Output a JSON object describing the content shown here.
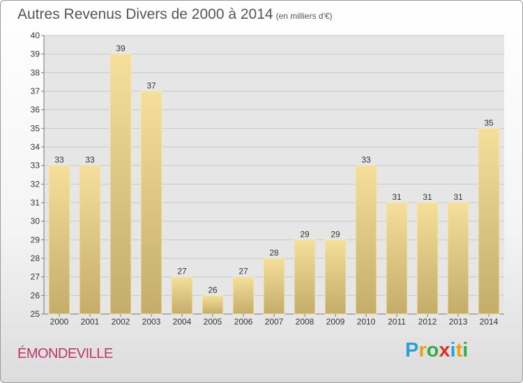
{
  "chart_data": {
    "type": "bar",
    "title": "Autres Revenus Divers de 2000 à 2014",
    "subtitle": "(en milliers d'€)",
    "categories": [
      "2000",
      "2001",
      "2002",
      "2003",
      "2004",
      "2005",
      "2006",
      "2007",
      "2008",
      "2009",
      "2010",
      "2011",
      "2012",
      "2013",
      "2014"
    ],
    "values": [
      33,
      33,
      39,
      37,
      27,
      26,
      27,
      28,
      29,
      29,
      33,
      31,
      31,
      31,
      35
    ],
    "ylim": [
      25,
      40
    ],
    "yticks": [
      25,
      26,
      27,
      28,
      29,
      30,
      31,
      32,
      33,
      34,
      35,
      36,
      37,
      38,
      39,
      40
    ],
    "grid": true,
    "bar_color_top": "#f5df9a",
    "bar_color_bottom": "#c4ac6a"
  },
  "footer": {
    "place_name": "ÉMONDEVILLE",
    "logo_letters": [
      "P",
      "r",
      "o",
      "x",
      "i",
      "t",
      "i"
    ],
    "logo_colors": [
      "#2b9fd8",
      "#e8a21a",
      "#3aa84a",
      "#d9342b",
      "#2b9fd8",
      "#e8a21a",
      "#3aa84a"
    ]
  }
}
